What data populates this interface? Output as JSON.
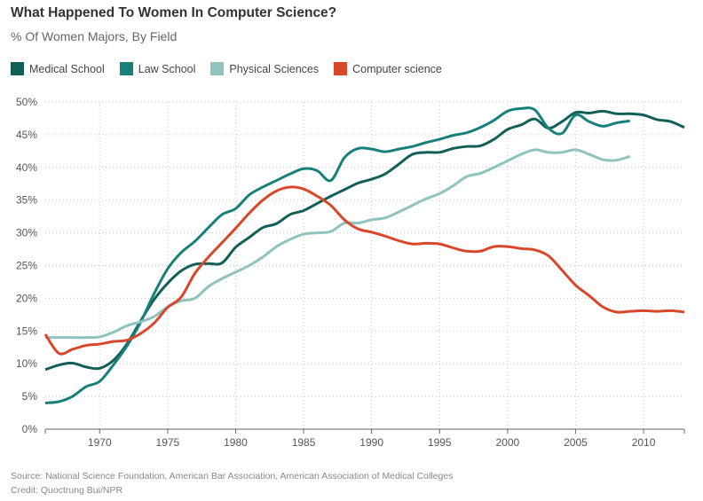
{
  "title": "What Happened To Women In Computer Science?",
  "subtitle": "% Of Women Majors, By Field",
  "source": "Source: National Science Foundation, American Bar Association, American Association of Medical Colleges",
  "credit": "Credit: Quoctrung Bui/NPR",
  "chart_data": {
    "type": "line",
    "title": "What Happened To Women In Computer Science?",
    "ylabel": "% Of Women Majors",
    "xlim": [
      1966,
      2013
    ],
    "ylim": [
      0,
      50
    ],
    "grid": true,
    "legend_placement": "top-left",
    "xticks": [
      1970,
      1975,
      1980,
      1985,
      1990,
      1995,
      2000,
      2005,
      2010
    ],
    "yticks": [
      0,
      5,
      10,
      15,
      20,
      25,
      30,
      35,
      40,
      45,
      50
    ],
    "ytick_labels": [
      "0%",
      "5%",
      "10%",
      "15%",
      "20%",
      "25%",
      "30%",
      "35%",
      "40%",
      "45%",
      "50%"
    ],
    "series": [
      {
        "name": "Medical School",
        "color": "#125f58",
        "start": 1966,
        "values": [
          9.1,
          9.8,
          10.1,
          9.5,
          9.3,
          10.5,
          13,
          16.5,
          19.8,
          22.3,
          24.2,
          25.2,
          25.3,
          25.4,
          27.8,
          29.3,
          30.8,
          31.4,
          32.8,
          33.4,
          34.5,
          35.6,
          36.6,
          37.6,
          38.2,
          39,
          40.5,
          42,
          42.3,
          42.3,
          42.9,
          43.2,
          43.3,
          44.3,
          45.8,
          46.5,
          47.4,
          46,
          47,
          48.4,
          48.3,
          48.6,
          48.2,
          48.2,
          48,
          47.3,
          47,
          46.1
        ]
      },
      {
        "name": "Law School",
        "color": "#18807a",
        "start": 1966,
        "values": [
          4,
          4.2,
          5,
          6.5,
          7.3,
          9.8,
          12.7,
          16.3,
          20.7,
          24.5,
          27,
          28.7,
          30.8,
          32.8,
          33.7,
          35.8,
          37,
          38,
          39,
          39.8,
          39.5,
          38,
          41.5,
          42.9,
          42.8,
          42.4,
          42.8,
          43.2,
          43.8,
          44.3,
          44.9,
          45.3,
          46.1,
          47.2,
          48.6,
          49,
          48.8,
          46,
          45.2,
          48,
          47,
          46.3,
          46.8,
          47.1
        ]
      },
      {
        "name": "Physical Sciences",
        "color": "#8ec3be",
        "start": 1966,
        "values": [
          14,
          14,
          14,
          14,
          14.1,
          14.8,
          15.8,
          16.4,
          17.2,
          18.7,
          19.6,
          20,
          21.8,
          23,
          24,
          25,
          26.3,
          27.9,
          29,
          29.8,
          30,
          30.2,
          31.5,
          31.5,
          32,
          32.3,
          33.2,
          34.2,
          35.2,
          36,
          37.2,
          38.6,
          39.1,
          40,
          41,
          42,
          42.7,
          42.3,
          42.3,
          42.7,
          42,
          41.2,
          41.1,
          41.7
        ]
      },
      {
        "name": "Computer science",
        "color": "#d9472b",
        "start": 1966,
        "values": [
          14.5,
          11.6,
          12.2,
          12.8,
          13,
          13.4,
          13.6,
          14.6,
          16.2,
          18.6,
          20.2,
          23.8,
          26.3,
          28.5,
          30.7,
          33,
          35,
          36.4,
          37,
          36.7,
          35.6,
          34.2,
          32,
          30.6,
          30.1,
          29.5,
          28.8,
          28.3,
          28.4,
          28.3,
          27.7,
          27.2,
          27.2,
          27.9,
          27.9,
          27.6,
          27.4,
          26.5,
          24.3,
          22,
          20.4,
          18.7,
          17.9,
          18,
          18.1,
          18,
          18.1,
          17.9
        ]
      }
    ]
  }
}
